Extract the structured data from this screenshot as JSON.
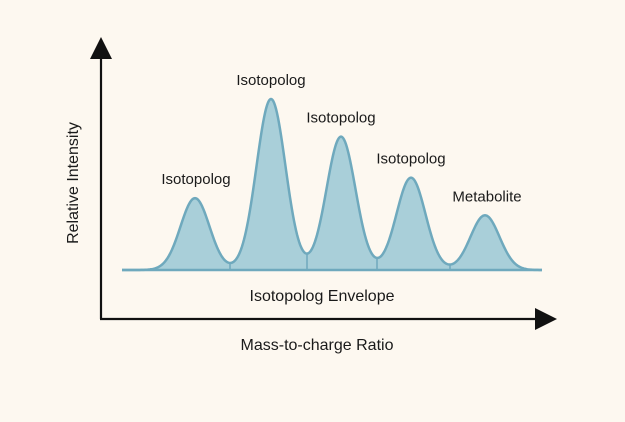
{
  "axes": {
    "x_label": "Mass-to-charge Ratio",
    "y_label": "Relative Intensity"
  },
  "envelope_label": "Isotopolog Envelope",
  "peaks": [
    {
      "label": "Isotopolog",
      "relative_intensity": 0.42
    },
    {
      "label": "Isotopolog",
      "relative_intensity": 1.0
    },
    {
      "label": "Isotopolog",
      "relative_intensity": 0.78
    },
    {
      "label": "Isotopolog",
      "relative_intensity": 0.54
    },
    {
      "label": "Metabolite",
      "relative_intensity": 0.32
    }
  ],
  "colors": {
    "fill": "#a9cfd9",
    "stroke": "#6fa9bd",
    "axis": "#111111",
    "background": "#fdf8f0"
  }
}
